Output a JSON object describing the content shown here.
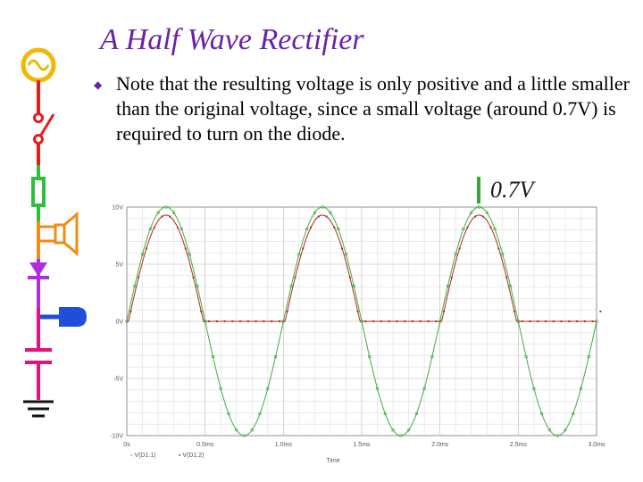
{
  "slide": {
    "title": "A Half Wave Rectifier",
    "bullet": "Note that the resulting voltage is only positive and a little smaller than the original voltage, since a small voltage (around 0.7V) is required to turn on the diode.",
    "callout_label": "0.7V"
  },
  "colors": {
    "title": "#6a23a6",
    "input_trace": "#3fae3f",
    "output_trace": "#b22a1c",
    "arrow": "#d9532c",
    "bar": "#3aa53a"
  },
  "chart_data": {
    "type": "line",
    "xlabel": "Time",
    "x_ticks": [
      "0s",
      "0.5ms",
      "1.0ms",
      "1.5ms",
      "2.0ms",
      "2.5ms",
      "3.0ms"
    ],
    "y_ticks": [
      "10V",
      "5V",
      "0V",
      "-5V",
      "-10V"
    ],
    "xlim": [
      0,
      3.0
    ],
    "ylim": [
      -10,
      10
    ],
    "x_unit": "ms",
    "grid": true,
    "input": {
      "amplitude": 10,
      "period": 1.0
    },
    "diode_drop": 0.7,
    "series": [
      {
        "name": "V(D1:1)",
        "color": "#3fae3f"
      },
      {
        "name": "V(D1:2)",
        "color": "#b22a1c"
      }
    ]
  }
}
